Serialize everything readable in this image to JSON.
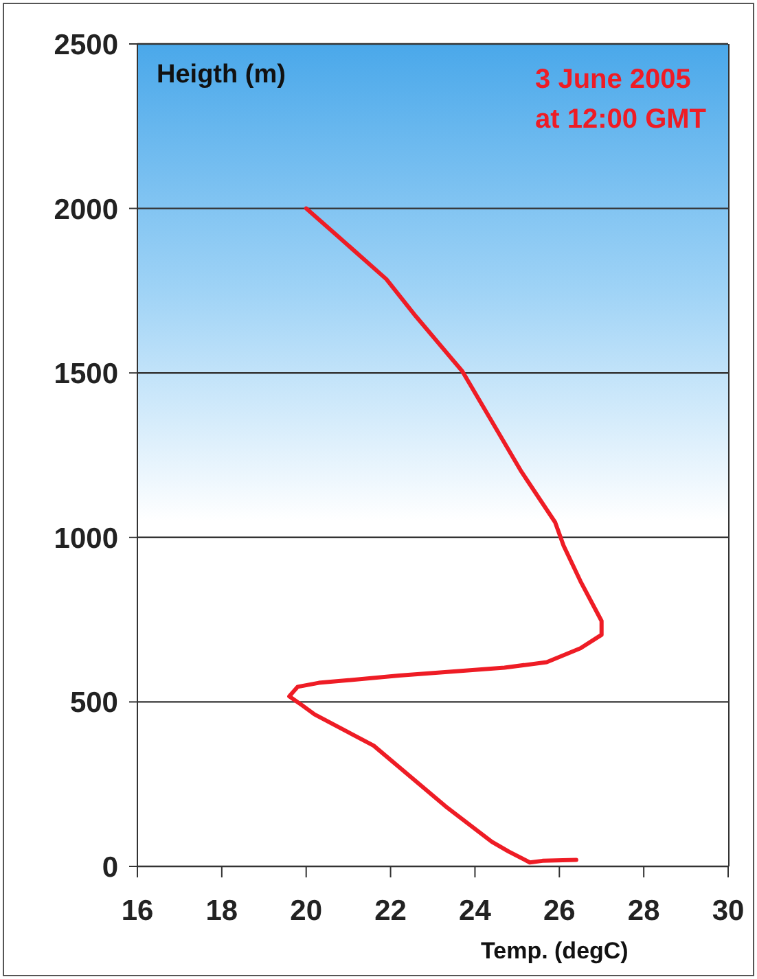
{
  "chart_data": {
    "type": "line",
    "title": "3 June 2005",
    "subtitle": "at 12:00 GMT",
    "ylabel": "Heigth (m)",
    "xlabel": "Temp. (degC)",
    "xlim": [
      16,
      30
    ],
    "xticks": [
      16,
      18,
      20,
      22,
      24,
      26,
      28,
      30
    ],
    "ylim": [
      0,
      2500
    ],
    "yticks": [
      0,
      500,
      1000,
      1500,
      2000,
      2500
    ],
    "grid": "y",
    "marker": "none",
    "line_style": "solid",
    "series": [
      {
        "color": "#ee1c25",
        "x": [
          26.4,
          25.6,
          25.3,
          24.8,
          24.4,
          23.3,
          21.6,
          20.2,
          19.9,
          19.6,
          19.8,
          20.3,
          22.2,
          24.7,
          25.7,
          26.5,
          27.0,
          27.0,
          26.5,
          26.1,
          25.9,
          25.1,
          23.7,
          22.6,
          21.9,
          20.8,
          20.0
        ],
        "values": [
          20,
          17,
          12,
          45,
          75,
          183,
          367,
          462,
          490,
          517,
          546,
          558,
          580,
          604,
          621,
          663,
          704,
          746,
          867,
          975,
          1046,
          1200,
          1505,
          1672,
          1785,
          1910,
          2000
        ]
      }
    ]
  }
}
